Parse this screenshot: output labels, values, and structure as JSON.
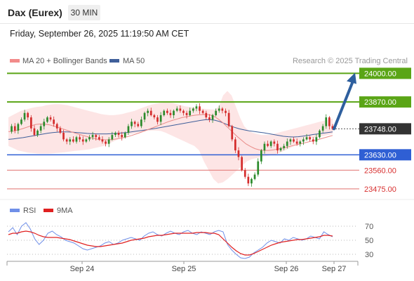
{
  "header": {
    "instrument": "Dax (Eurex)",
    "timeframe": "30 MIN",
    "datetime": "Friday, September 26, 2025 11:19:50 AM CET"
  },
  "legend": {
    "bollinger": "MA 20 + Bollinger Bands",
    "ma50": "MA 50",
    "credit": "Research © 2025 Trading Central",
    "rsi": "RSI",
    "ma9": "9MA"
  },
  "colors": {
    "resistance": "#5aa516",
    "pivot": "#2f5fd4",
    "support": "#e0706e",
    "ma20": "#e98b88",
    "ma50": "#3f5f9a",
    "band_fill": "#fde0e0",
    "candle_up": "#2b8a2b",
    "candle_down": "#d42c2c",
    "arrow": "#2e5f9e",
    "rsi_line": "#6f8fe8",
    "rsi_ma": "#e02020",
    "current_price_bg": "#333333"
  },
  "chart_data": [
    {
      "type": "candlestick",
      "title": "Dax (Eurex)",
      "ylim": [
        23430,
        24030
      ],
      "x_tick_labels": [
        "Sep 24",
        "Sep 25",
        "Sep 26",
        "Sep 27"
      ],
      "levels": [
        {
          "label": "24000.00",
          "value": 24000,
          "kind": "resistance"
        },
        {
          "label": "23870.00",
          "value": 23870,
          "kind": "resistance"
        },
        {
          "label": "23748.00",
          "value": 23748,
          "kind": "current"
        },
        {
          "label": "23630.00",
          "value": 23630,
          "kind": "pivot"
        },
        {
          "label": "23560.00",
          "value": 23560,
          "kind": "support"
        },
        {
          "label": "23475.00",
          "value": 23475,
          "kind": "support"
        }
      ],
      "close_series": [
        23735,
        23760,
        23740,
        23770,
        23790,
        23820,
        23800,
        23750,
        23720,
        23740,
        23760,
        23780,
        23800,
        23790,
        23770,
        23750,
        23730,
        23700,
        23690,
        23700,
        23690,
        23710,
        23700,
        23690,
        23700,
        23710,
        23720,
        23710,
        23700,
        23690,
        23680,
        23700,
        23720,
        23730,
        23720,
        23710,
        23730,
        23760,
        23780,
        23770,
        23760,
        23790,
        23820,
        23830,
        23810,
        23800,
        23780,
        23810,
        23830,
        23820,
        23810,
        23830,
        23840,
        23830,
        23820,
        23810,
        23830,
        23840,
        23850,
        23830,
        23820,
        23800,
        23790,
        23810,
        23830,
        23840,
        23830,
        23820,
        23760,
        23700,
        23650,
        23620,
        23560,
        23530,
        23500,
        23520,
        23540,
        23600,
        23650,
        23680,
        23670,
        23690,
        23680,
        23650,
        23660,
        23670,
        23690,
        23700,
        23690,
        23680,
        23690,
        23700,
        23710,
        23700,
        23690,
        23710,
        23740,
        23760,
        23800,
        23760,
        23748
      ],
      "bollinger_upper": [
        23800,
        23810,
        23820,
        23830,
        23835,
        23840,
        23845,
        23848,
        23850,
        23855,
        23858,
        23860,
        23860,
        23858,
        23855,
        23850,
        23845,
        23840,
        23835,
        23830,
        23825,
        23820,
        23815,
        23812,
        23810,
        23810,
        23812,
        23815,
        23820,
        23825,
        23830,
        23838,
        23845,
        23852,
        23858,
        23862,
        23865,
        23866,
        23866,
        23865,
        23860,
        23855,
        23850,
        23847,
        23845,
        23842,
        23840,
        23838,
        23836,
        23835,
        23850,
        23900,
        23920,
        23900,
        23850,
        23800,
        23760,
        23740,
        23730,
        23725,
        23720,
        23720,
        23720,
        23725,
        23730,
        23735,
        23740,
        23745,
        23750,
        23755,
        23760,
        23765,
        23770,
        23775,
        23780,
        23785,
        23790,
        23795
      ],
      "bollinger_lower": [
        23670,
        23660,
        23650,
        23645,
        23640,
        23638,
        23636,
        23635,
        23635,
        23636,
        23638,
        23640,
        23642,
        23645,
        23648,
        23650,
        23652,
        23655,
        23660,
        23665,
        23670,
        23680,
        23690,
        23700,
        23710,
        23720,
        23725,
        23730,
        23734,
        23738,
        23740,
        23740,
        23738,
        23730,
        23720,
        23710,
        23700,
        23690,
        23680,
        23670,
        23650,
        23600,
        23560,
        23520,
        23500,
        23505,
        23520,
        23540,
        23560,
        23580,
        23600,
        23610,
        23615,
        23620,
        23624,
        23628,
        23632,
        23640,
        23650,
        23660,
        23670,
        23680,
        23690,
        23700,
        23705,
        23710,
        23715,
        23720,
        23725
      ],
      "ma20": [
        23735,
        23737,
        23742,
        23748,
        23755,
        23762,
        23768,
        23770,
        23769,
        23766,
        23760,
        23754,
        23747,
        23740,
        23733,
        23726,
        23720,
        23714,
        23708,
        23703,
        23699,
        23698,
        23698,
        23700,
        23703,
        23707,
        23712,
        23718,
        23725,
        23732,
        23740,
        23748,
        23756,
        23764,
        23772,
        23780,
        23787,
        23793,
        23799,
        23803,
        23807,
        23810,
        23812,
        23813,
        23812,
        23805,
        23792,
        23775,
        23755,
        23735,
        23715,
        23697,
        23680,
        23668,
        23658,
        23652,
        23650,
        23650,
        23652,
        23656,
        23660,
        23665,
        23670,
        23675,
        23680,
        23685,
        23690,
        23695,
        23700,
        23706,
        23712,
        23718
      ],
      "ma50": [
        23700,
        23702,
        23705,
        23708,
        23712,
        23716,
        23720,
        23724,
        23728,
        23731,
        23733,
        23734,
        23734,
        23733,
        23731,
        23729,
        23727,
        23726,
        23725,
        23725,
        23725,
        23726,
        23727,
        23729,
        23731,
        23734,
        23737,
        23740,
        23743,
        23747,
        23750,
        23754,
        23758,
        23762,
        23766,
        23770,
        23774,
        23778,
        23782,
        23786,
        23789,
        23790,
        23787,
        23781,
        23772,
        23763,
        23755,
        23748,
        23743,
        23739,
        23736,
        23733,
        23730,
        23726,
        23722,
        23718,
        23714,
        23712,
        23711,
        23712,
        23715,
        23718,
        23722,
        23725,
        23728,
        23731,
        23734
      ]
    },
    {
      "type": "line",
      "title": "RSI",
      "ylim": [
        20,
        80
      ],
      "y_tick_labels": [
        "70",
        "50",
        "30"
      ],
      "series": [
        {
          "name": "RSI",
          "values": [
            62,
            68,
            58,
            70,
            75,
            66,
            52,
            44,
            50,
            60,
            63,
            58,
            55,
            50,
            48,
            46,
            42,
            38,
            36,
            38,
            40,
            42,
            46,
            48,
            44,
            46,
            50,
            52,
            54,
            52,
            50,
            56,
            60,
            62,
            58,
            56,
            60,
            63,
            60,
            58,
            62,
            64,
            60,
            58,
            62,
            60,
            58,
            62,
            64,
            62,
            44,
            36,
            30,
            25,
            24,
            26,
            32,
            36,
            40,
            46,
            50,
            48,
            46,
            52,
            50,
            54,
            52,
            50,
            52,
            56,
            54,
            52,
            62,
            58,
            55
          ]
        },
        {
          "name": "9MA",
          "values": [
            58,
            60,
            60,
            62,
            63,
            62,
            60,
            57,
            55,
            54,
            54,
            54,
            53,
            52,
            51,
            49,
            47,
            45,
            43,
            42,
            41,
            41,
            42,
            43,
            44,
            45,
            46,
            48,
            50,
            51,
            52,
            53,
            55,
            56,
            57,
            57,
            58,
            59,
            60,
            60,
            60,
            60,
            60,
            61,
            61,
            61,
            60,
            60,
            58,
            52,
            46,
            40,
            35,
            31,
            29,
            29,
            31,
            34,
            37,
            40,
            43,
            45,
            47,
            48,
            49,
            50,
            51,
            51,
            52,
            53,
            54,
            55,
            57,
            57,
            56
          ]
        }
      ]
    }
  ]
}
